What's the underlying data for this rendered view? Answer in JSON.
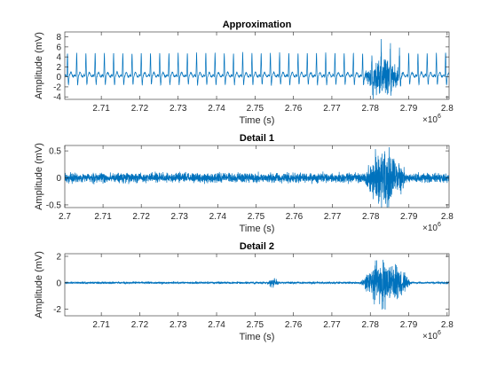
{
  "figure": {
    "background": "#ffffff"
  },
  "chart_data": [
    {
      "type": "line",
      "title": "Approximation",
      "xlabel": "Time (s)",
      "ylabel": "Amplitude (mV)",
      "xlim": [
        2700500,
        2800500
      ],
      "ylim": [
        -4.5,
        9
      ],
      "xticks": [
        2710000,
        2720000,
        2730000,
        2740000,
        2750000,
        2760000,
        2770000,
        2780000,
        2790000,
        2800000
      ],
      "xticklabels": [
        "2.71",
        "2.72",
        "2.73",
        "2.74",
        "2.75",
        "2.76",
        "2.77",
        "2.78",
        "2.79",
        "2.8"
      ],
      "yticks": [
        -4,
        -2,
        0,
        2,
        4,
        6,
        8
      ],
      "yticklabels": [
        "-4",
        "-2",
        "0",
        "2",
        "4",
        "6",
        "8"
      ],
      "x_exponent": "×10^6",
      "x_exponent_base": "×10",
      "x_exponent_power": "6",
      "grid": false,
      "color": "#0072bd",
      "signal": {
        "kind": "ecg",
        "beat_interval": 2400,
        "r_peak_amplitude": 4.8,
        "baseline": 0.0,
        "noise_burst": [
          2777500,
          2789000
        ],
        "noise_amplitude": 2.2
      }
    },
    {
      "type": "line",
      "title": "Detail 1",
      "xlabel": "Time (s)",
      "ylabel": "Amplitude (mV)",
      "xlim": [
        2700000,
        2800500
      ],
      "ylim": [
        -0.55,
        0.6
      ],
      "xticks": [
        2700000,
        2710000,
        2720000,
        2730000,
        2740000,
        2750000,
        2760000,
        2770000,
        2780000,
        2790000,
        2800000
      ],
      "xticklabels": [
        "2.7",
        "2.71",
        "2.72",
        "2.73",
        "2.74",
        "2.75",
        "2.76",
        "2.77",
        "2.78",
        "2.79",
        "2.8"
      ],
      "yticks": [
        -0.5,
        0,
        0.5
      ],
      "yticklabels": [
        "-0.5",
        "0",
        "0.5"
      ],
      "x_exponent": "×10^6",
      "x_exponent_base": "×10",
      "x_exponent_power": "6",
      "grid": false,
      "color": "#0072bd",
      "signal": {
        "kind": "noise",
        "base_amplitude": 0.07,
        "burst": [
          2777500,
          2790000
        ],
        "burst_amplitude": 0.5
      }
    },
    {
      "type": "line",
      "title": "Detail 2",
      "xlabel": "Time (s)",
      "ylabel": "Amplitude (mV)",
      "xlim": [
        2700500,
        2800500
      ],
      "ylim": [
        -2.5,
        2.2
      ],
      "xticks": [
        2710000,
        2720000,
        2730000,
        2740000,
        2750000,
        2760000,
        2770000,
        2780000,
        2790000,
        2800000
      ],
      "xticklabels": [
        "2.71",
        "2.72",
        "2.73",
        "2.74",
        "2.75",
        "2.76",
        "2.77",
        "2.78",
        "2.79",
        "2.8"
      ],
      "yticks": [
        -2,
        0,
        2
      ],
      "yticklabels": [
        "-2",
        "0",
        "2"
      ],
      "x_exponent": "×10^6",
      "x_exponent_base": "×10",
      "x_exponent_power": "6",
      "grid": false,
      "color": "#0072bd",
      "signal": {
        "kind": "noise",
        "base_amplitude": 0.06,
        "small_burst": [
          2753000,
          2756500
        ],
        "small_burst_amplitude": 0.3,
        "burst": [
          2777000,
          2791000
        ],
        "burst_amplitude": 1.6
      }
    }
  ]
}
